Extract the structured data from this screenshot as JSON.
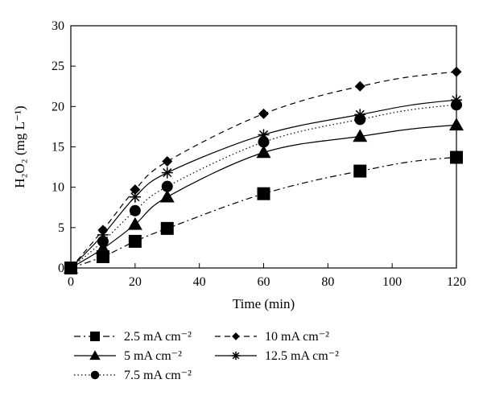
{
  "chart_data": {
    "type": "line",
    "title": "",
    "xlabel": "Time (min)",
    "ylabel": "H₂O₂ (mg L⁻¹)",
    "xlim": [
      0,
      120
    ],
    "ylim": [
      0,
      30
    ],
    "xticks": [
      "0",
      "20",
      "40",
      "60",
      "80",
      "100",
      "120"
    ],
    "yticks": [
      "0",
      "5",
      "10",
      "15",
      "20",
      "25",
      "30"
    ],
    "grid": false,
    "legend_position": "bottom",
    "x": [
      0,
      10,
      20,
      30,
      60,
      90,
      120
    ],
    "series": [
      {
        "name": "2.5 mA cm⁻²",
        "marker": "square",
        "dash": "dashdot",
        "values": [
          0,
          1.4,
          3.3,
          4.9,
          9.2,
          12.0,
          13.7
        ]
      },
      {
        "name": "5 mA cm⁻²",
        "marker": "triangle",
        "dash": "solid",
        "values": [
          0,
          2.4,
          5.4,
          8.8,
          14.3,
          16.3,
          17.7
        ]
      },
      {
        "name": "7.5 mA cm⁻²",
        "marker": "circle",
        "dash": "dotted",
        "values": [
          0,
          3.3,
          7.1,
          10.1,
          15.6,
          18.4,
          20.2
        ]
      },
      {
        "name": "10 mA cm⁻²",
        "marker": "diamond",
        "dash": "dashed",
        "values": [
          0,
          4.7,
          9.7,
          13.2,
          19.1,
          22.5,
          24.3
        ]
      },
      {
        "name": "12.5 mA cm⁻²",
        "marker": "star",
        "dash": "solid",
        "values": [
          0,
          4.1,
          8.8,
          11.8,
          16.5,
          19.0,
          20.8
        ]
      }
    ]
  }
}
